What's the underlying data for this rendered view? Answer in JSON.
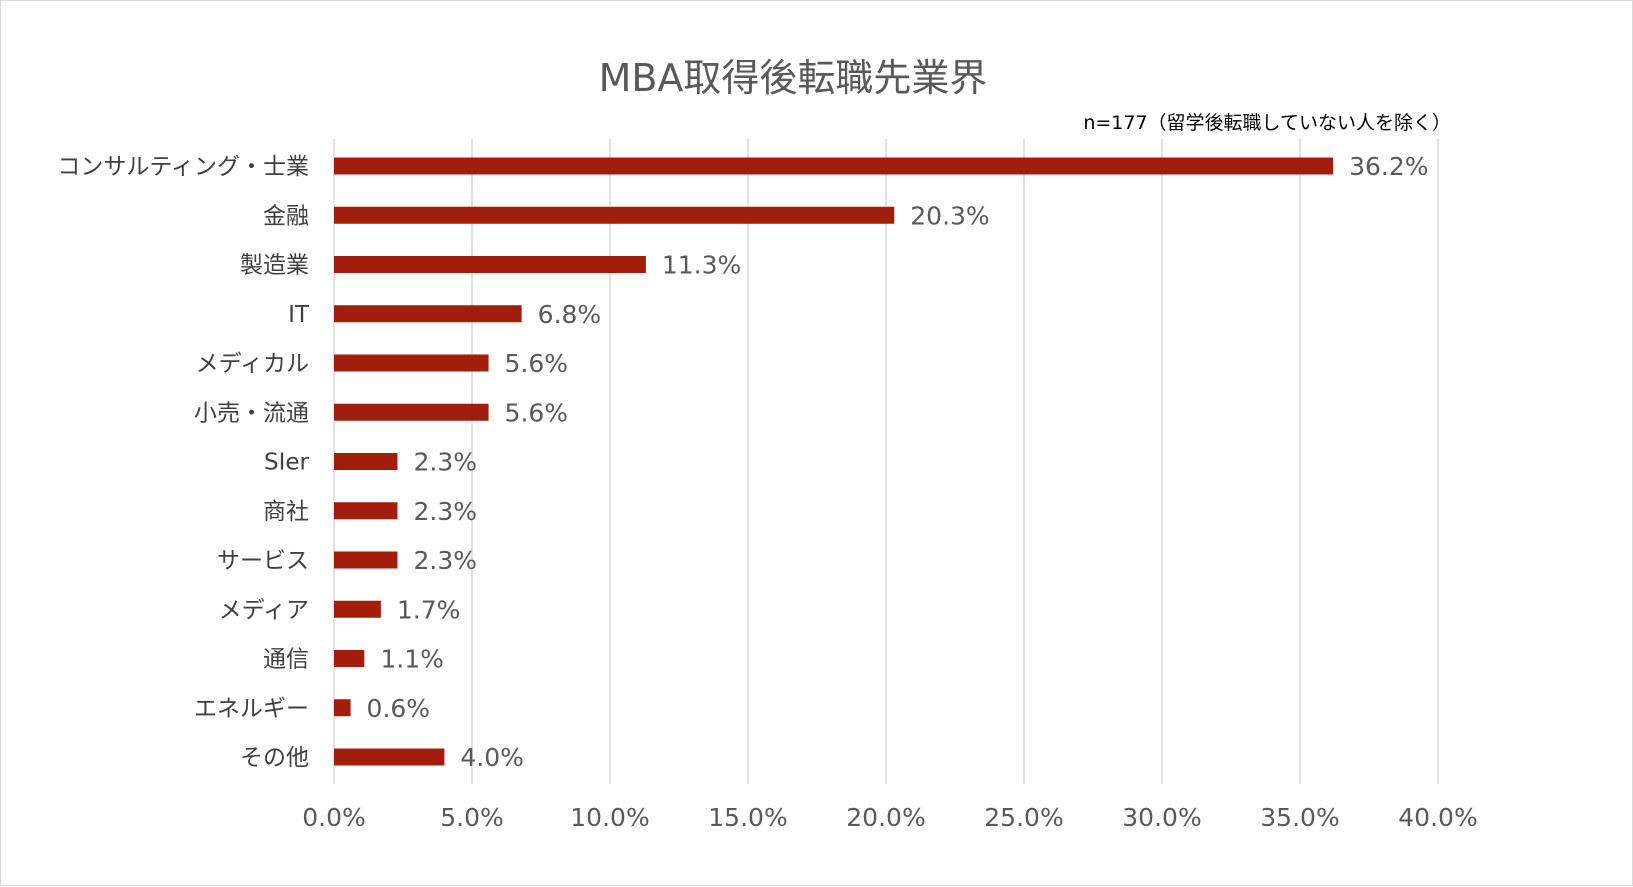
{
  "chart_data": {
    "type": "bar",
    "orientation": "horizontal",
    "title": "MBA取得後転職先業界",
    "subtitle": "n=177（留学後転職していない人を除く）",
    "categories": [
      "コンサルティング・士業",
      "金融",
      "製造業",
      "IT",
      "メディカル",
      "小売・流通",
      "SIer",
      "商社",
      "サービス",
      "メディア",
      "通信",
      "エネルギー",
      "その他"
    ],
    "values": [
      36.2,
      20.3,
      11.3,
      6.8,
      5.6,
      5.6,
      2.3,
      2.3,
      2.3,
      1.7,
      1.1,
      0.6,
      4.0
    ],
    "data_labels": [
      "36.2%",
      "20.3%",
      "11.3%",
      "6.8%",
      "5.6%",
      "5.6%",
      "2.3%",
      "2.3%",
      "2.3%",
      "1.7%",
      "1.1%",
      "0.6%",
      "4.0%"
    ],
    "x_ticks": [
      "0.0%",
      "5.0%",
      "10.0%",
      "15.0%",
      "20.0%",
      "25.0%",
      "30.0%",
      "35.0%",
      "40.0%"
    ],
    "xlim": [
      0,
      40
    ],
    "grid": "vertical",
    "legend": "none",
    "bar_color": "#A21E0C",
    "grid_color": "#D9D9D9"
  }
}
